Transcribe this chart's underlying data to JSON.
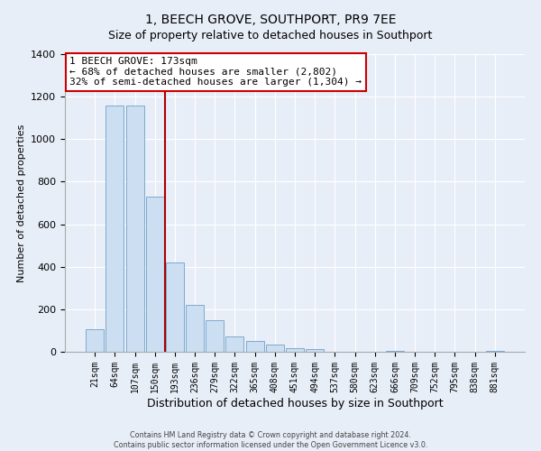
{
  "title": "1, BEECH GROVE, SOUTHPORT, PR9 7EE",
  "subtitle": "Size of property relative to detached houses in Southport",
  "xlabel": "Distribution of detached houses by size in Southport",
  "ylabel": "Number of detached properties",
  "bar_labels": [
    "21sqm",
    "64sqm",
    "107sqm",
    "150sqm",
    "193sqm",
    "236sqm",
    "279sqm",
    "322sqm",
    "365sqm",
    "408sqm",
    "451sqm",
    "494sqm",
    "537sqm",
    "580sqm",
    "623sqm",
    "666sqm",
    "709sqm",
    "752sqm",
    "795sqm",
    "838sqm",
    "881sqm"
  ],
  "bar_values": [
    107,
    1160,
    1160,
    730,
    420,
    220,
    148,
    72,
    50,
    32,
    18,
    14,
    0,
    0,
    0,
    5,
    0,
    0,
    0,
    0,
    5
  ],
  "bar_color": "#ccdff2",
  "bar_edge_color": "#7eaacc",
  "vline_x": 3.5,
  "vline_color": "#aa0000",
  "annotation_title": "1 BEECH GROVE: 173sqm",
  "annotation_line1": "← 68% of detached houses are smaller (2,802)",
  "annotation_line2": "32% of semi-detached houses are larger (1,304) →",
  "annotation_box_color": "#ffffff",
  "annotation_box_edge_color": "#cc0000",
  "ylim": [
    0,
    1400
  ],
  "yticks": [
    0,
    200,
    400,
    600,
    800,
    1000,
    1200,
    1400
  ],
  "background_color": "#e8eef8",
  "grid_color": "#ffffff",
  "footer_line1": "Contains HM Land Registry data © Crown copyright and database right 2024.",
  "footer_line2": "Contains public sector information licensed under the Open Government Licence v3.0.",
  "figsize": [
    6.0,
    5.0
  ],
  "dpi": 100
}
